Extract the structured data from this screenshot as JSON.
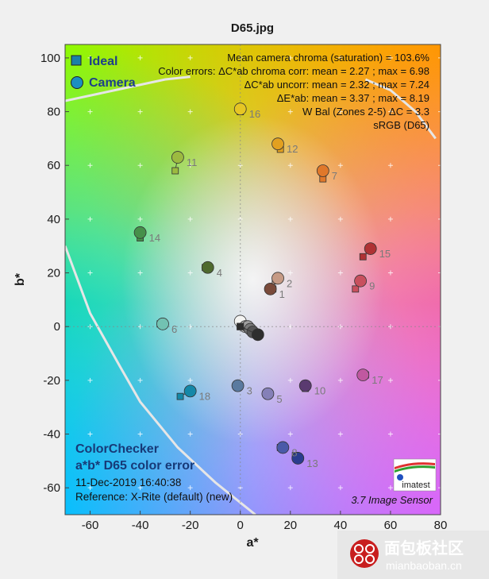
{
  "chart_data": {
    "type": "scatter",
    "title": "D65.jpg",
    "xlabel": "a*",
    "ylabel": "b*",
    "xlim": [
      -70,
      80
    ],
    "ylim": [
      -70,
      105
    ],
    "xticks": [
      -60,
      -40,
      -20,
      0,
      20,
      40,
      60,
      80
    ],
    "yticks": [
      -60,
      -40,
      -20,
      0,
      20,
      40,
      60,
      80,
      100
    ],
    "grid": "light cross markers every 10 units",
    "legend": {
      "placement": "top-left",
      "ideal": "Ideal",
      "camera": "Camera"
    },
    "info_lines": [
      "Mean camera chroma (saturation) = 103.6%",
      "Color errors: ΔC*ab chroma corr:  mean = 2.27 ;  max = 6.98",
      "ΔC*ab uncorr:  mean = 2.32 ;  max = 7.24",
      "ΔE*ab:  mean = 3.37 ;  max = 8.19",
      "W Bal (Zones 2-5) ΔC = 3.3",
      "sRGB (D65)"
    ],
    "bottom_left": {
      "title_line1": "ColorChecker",
      "title_line2": "a*b* D65 color error",
      "date": "11-Dec-2019 16:40:38",
      "reference": "Reference: X-Rite (default) (new)"
    },
    "sensor": "3.7  Image Sensor",
    "logo": "imatest",
    "patches": [
      {
        "id": "1",
        "ideal": [
          13,
          14
        ],
        "camera": [
          12,
          14
        ],
        "color": "#7a4a3a"
      },
      {
        "id": "2",
        "ideal": [
          14,
          17
        ],
        "camera": [
          15,
          18
        ],
        "color": "#c69a85"
      },
      {
        "id": "3",
        "ideal": [
          -1,
          -22
        ],
        "camera": [
          -1,
          -22
        ],
        "color": "#5a7aa0"
      },
      {
        "id": "4",
        "ideal": [
          -14,
          22
        ],
        "camera": [
          -13,
          22
        ],
        "color": "#4e6a2e"
      },
      {
        "id": "5",
        "ideal": [
          11,
          -25
        ],
        "camera": [
          11,
          -25
        ],
        "color": "#8580b8"
      },
      {
        "id": "6",
        "ideal": [
          -32,
          1
        ],
        "camera": [
          -31,
          1
        ],
        "color": "#72c2b2"
      },
      {
        "id": "7",
        "ideal": [
          33,
          55
        ],
        "camera": [
          33,
          58
        ],
        "color": "#e0782a"
      },
      {
        "id": "8",
        "ideal": [
          16,
          -45
        ],
        "camera": [
          17,
          -45
        ],
        "color": "#4a5aa8"
      },
      {
        "id": "9",
        "ideal": [
          46,
          14
        ],
        "camera": [
          48,
          17
        ],
        "color": "#c8505e"
      },
      {
        "id": "10",
        "ideal": [
          26,
          -23
        ],
        "camera": [
          26,
          -22
        ],
        "color": "#5a3a70"
      },
      {
        "id": "11",
        "ideal": [
          -26,
          58
        ],
        "camera": [
          -25,
          63
        ],
        "color": "#9cba40"
      },
      {
        "id": "12",
        "ideal": [
          16,
          66
        ],
        "camera": [
          15,
          68
        ],
        "color": "#e2a020"
      },
      {
        "id": "13",
        "ideal": [
          22,
          -48
        ],
        "camera": [
          23,
          -49
        ],
        "color": "#2a3c8e"
      },
      {
        "id": "14",
        "ideal": [
          -40,
          33
        ],
        "camera": [
          -40,
          35
        ],
        "color": "#46904a"
      },
      {
        "id": "15",
        "ideal": [
          49,
          26
        ],
        "camera": [
          52,
          29
        ],
        "color": "#b03234"
      },
      {
        "id": "16",
        "ideal": [
          0,
          80
        ],
        "camera": [
          0,
          81
        ],
        "color": "#e6c624"
      },
      {
        "id": "17",
        "ideal": [
          50,
          -18
        ],
        "camera": [
          49,
          -18
        ],
        "color": "#c058a0"
      },
      {
        "id": "18",
        "ideal": [
          -24,
          -26
        ],
        "camera": [
          -20,
          -24
        ],
        "color": "#1488a8"
      },
      {
        "id": "19",
        "ideal": [
          0,
          1
        ],
        "camera": [
          0,
          2
        ],
        "color": "#f4f4f2"
      },
      {
        "id": "20",
        "ideal": [
          0,
          0
        ],
        "camera": [
          2,
          0
        ],
        "color": "#c4c4c2"
      },
      {
        "id": "21",
        "ideal": [
          0,
          0
        ],
        "camera": [
          3,
          0
        ],
        "color": "#a0a0a0"
      },
      {
        "id": "22",
        "ideal": [
          0,
          0
        ],
        "camera": [
          4,
          -1
        ],
        "color": "#7a7a7a"
      },
      {
        "id": "23",
        "ideal": [
          0,
          0
        ],
        "camera": [
          5,
          -2
        ],
        "color": "#555555"
      },
      {
        "id": "24",
        "ideal": [
          0,
          0
        ],
        "camera": [
          7,
          -3
        ],
        "color": "#2e2e2e"
      }
    ],
    "visible_labels": [
      "1",
      "2",
      "3",
      "4",
      "5",
      "6",
      "7",
      "8",
      "9",
      "10",
      "11",
      "12",
      "13",
      "14",
      "15",
      "16",
      "17",
      "18"
    ]
  },
  "watermark": {
    "cn": "面包板社区",
    "url": "mianbaoban.cn"
  },
  "colors": {
    "ideal_marker_stroke": "#333333",
    "camera_marker_stroke": "#333333",
    "legend_square": "#1a7fa8",
    "legend_circle": "#1a8fc0",
    "gamut_line": "#e6e6e6"
  }
}
